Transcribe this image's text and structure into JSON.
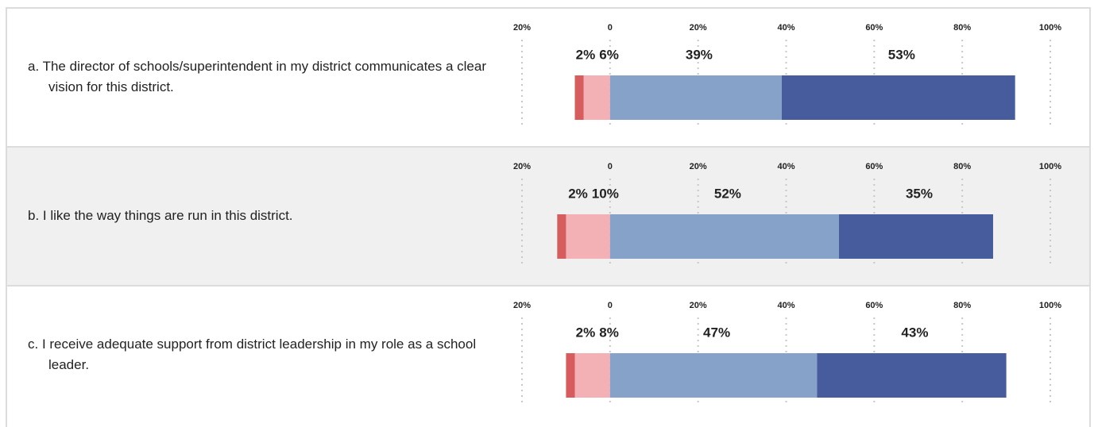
{
  "chart_data": {
    "type": "diverging-bar",
    "categories": [
      "a. The director of schools/superintendent in my district communicates a clear vision for this district.",
      "b. I like the way things are run in this district.",
      "c. I receive adequate support from district leadership in my role as a school leader."
    ],
    "series": [
      {
        "color": "#d65c5e",
        "side": "left",
        "values": [
          2,
          2,
          2
        ],
        "value_labels": [
          "2%",
          "2%",
          "2%"
        ]
      },
      {
        "color": "#f3b1b6",
        "side": "left",
        "values": [
          6,
          10,
          8
        ],
        "value_labels": [
          "6%",
          "10%",
          "8%"
        ]
      },
      {
        "color": "#86a2c8",
        "side": "right",
        "values": [
          39,
          52,
          47
        ],
        "value_labels": [
          "39%",
          "52%",
          "47%"
        ]
      },
      {
        "color": "#465c9d",
        "side": "right",
        "values": [
          53,
          35,
          43
        ],
        "value_labels": [
          "53%",
          "35%",
          "43%"
        ]
      }
    ],
    "xlim": [
      -20,
      100
    ],
    "xticks": [
      {
        "value": -20,
        "label": "20%"
      },
      0,
      {
        "value": 20,
        "label": "20%"
      },
      {
        "value": 40,
        "label": "40%"
      },
      {
        "value": 60,
        "label": "60%"
      },
      {
        "value": 80,
        "label": "80%"
      },
      {
        "value": 100,
        "label": "100%"
      }
    ],
    "grid": true
  }
}
